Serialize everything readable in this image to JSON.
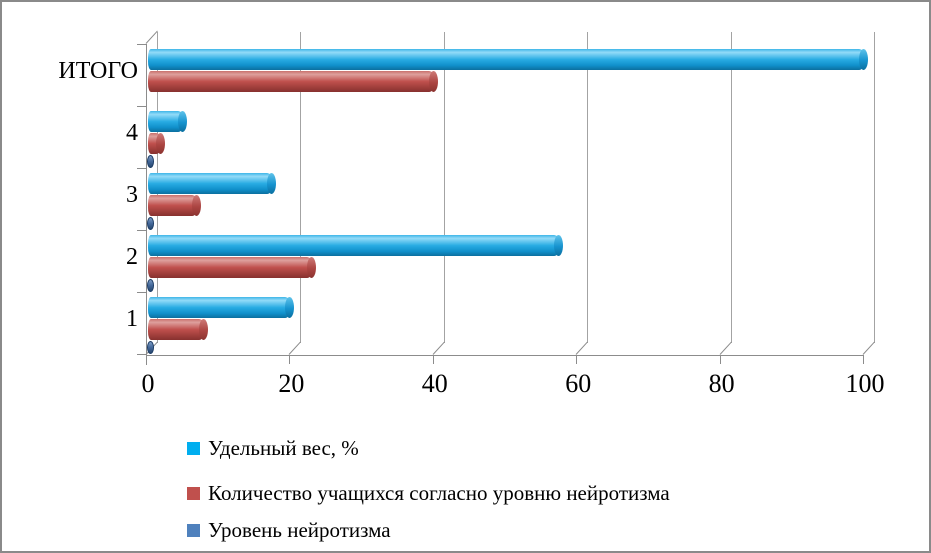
{
  "chart_data": {
    "type": "bar",
    "orientation": "horizontal",
    "bar_style": "3d-cylinder",
    "title": "",
    "categories": [
      "ИТОГО",
      "4",
      "3",
      "2",
      "1"
    ],
    "series": [
      {
        "id": "percent",
        "name": "Удельный вес, %",
        "color": "#00AEEF",
        "values": [
          100,
          5,
          17.5,
          57.5,
          20
        ]
      },
      {
        "id": "count",
        "name": "Количество учащихся согласно уровню нейротизма",
        "color": "#C0504D",
        "values": [
          40,
          2,
          7,
          23,
          8
        ]
      },
      {
        "id": "level",
        "name": "Уровень нейротизма",
        "color": "#4F81BD",
        "values": [
          null,
          1,
          1,
          1,
          1
        ]
      }
    ],
    "x_axis": {
      "min": 0,
      "max": 100,
      "tick_step": 20,
      "tick_labels": [
        "0",
        "20",
        "40",
        "60",
        "80",
        "100"
      ]
    },
    "grid": true,
    "legend_position": "bottom-left",
    "background": "#FFFFFF",
    "frame_border_color": "#8A8A8A",
    "gridline_color": "#A3A3A3",
    "axis_color": "#8C8C8C"
  }
}
